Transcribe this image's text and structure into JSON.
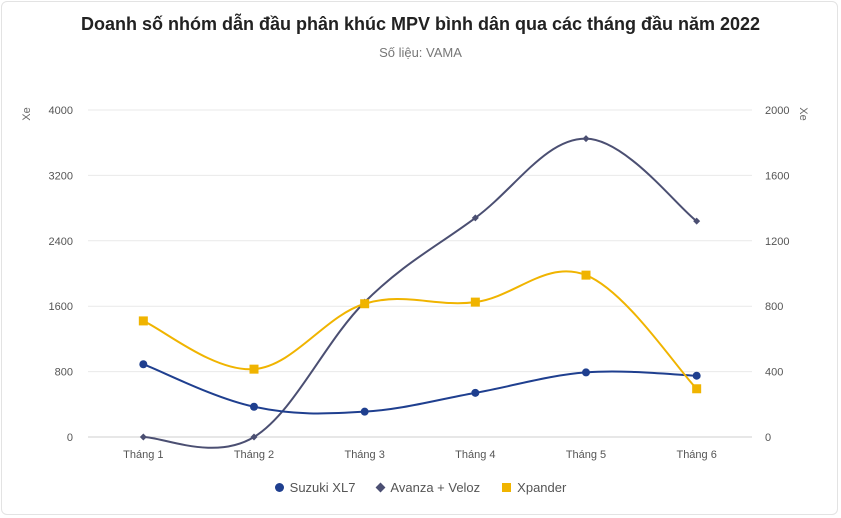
{
  "chart_data": {
    "type": "line",
    "title": "Doanh số nhóm dẫn đầu phân khúc MPV bình dân qua các tháng đầu năm 2022",
    "subtitle": "Số liệu: VAMA",
    "ylabel_left": "Xe",
    "ylabel_right": "Xe",
    "categories": [
      "Tháng 1",
      "Tháng 2",
      "Tháng 3",
      "Tháng 4",
      "Tháng 5",
      "Tháng 6"
    ],
    "y_left": {
      "min": 0,
      "max": 4000,
      "ticks": [
        "0",
        "800",
        "1600",
        "2400",
        "3200",
        "4000"
      ]
    },
    "y_right": {
      "min": 0,
      "max": 2000,
      "ticks": [
        "0",
        "400",
        "800",
        "1200",
        "1600",
        "2000"
      ]
    },
    "grid": true,
    "legend_position": "bottom",
    "series": [
      {
        "name": "Suzuki XL7",
        "axis": "left",
        "marker": "circle",
        "color": "#1f3f8f",
        "values": [
          890,
          370,
          310,
          540,
          790,
          750
        ]
      },
      {
        "name": "Avanza + Veloz",
        "axis": "left",
        "marker": "diamond",
        "color": "#4b4f72",
        "values": [
          0,
          0,
          1650,
          2680,
          3650,
          2640
        ]
      },
      {
        "name": "Xpander",
        "axis": "right",
        "marker": "square",
        "color": "#f0b400",
        "values": [
          710,
          415,
          815,
          825,
          990,
          295
        ]
      }
    ]
  }
}
